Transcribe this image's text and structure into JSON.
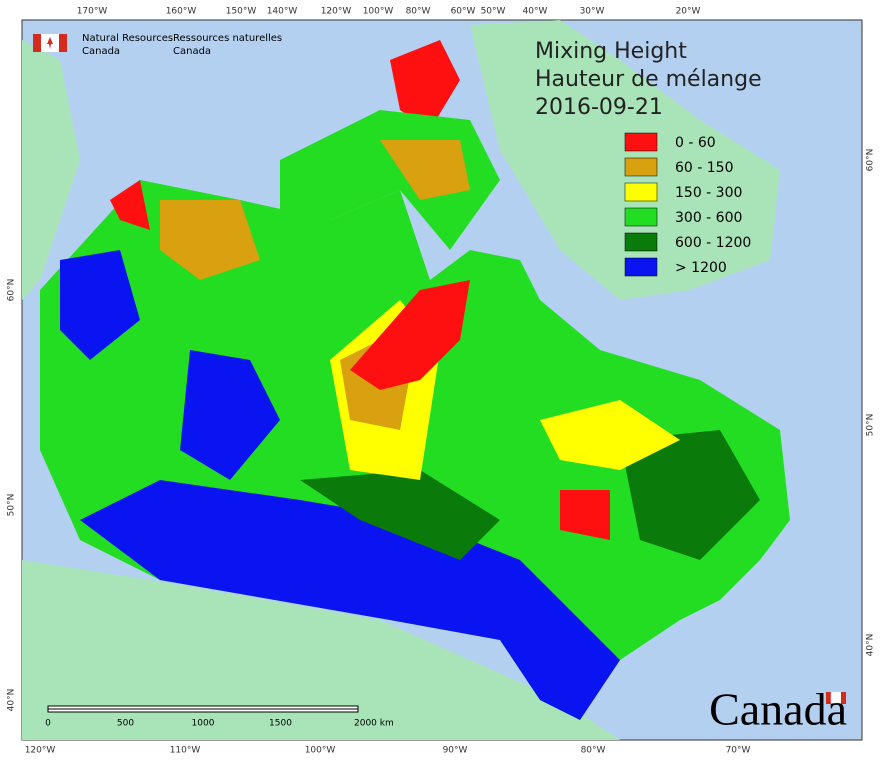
{
  "agency": {
    "en_line1": "Natural Resources",
    "en_line2": "Canada",
    "fr_line1": "Ressources naturelles",
    "fr_line2": "Canada"
  },
  "title": {
    "line1": "Mixing Height",
    "line2": "Hauteur de mélange",
    "date": "2016-09-21"
  },
  "legend": [
    {
      "label": "0 - 60",
      "color": "#ff1010"
    },
    {
      "label": "60 - 150",
      "color": "#d9a010"
    },
    {
      "label": "150 - 300",
      "color": "#ffff00"
    },
    {
      "label": "300 - 600",
      "color": "#22dd22"
    },
    {
      "label": "600 - 1200",
      "color": "#0a7a0a"
    },
    {
      "label": "> 1200",
      "color": "#0a14f0"
    }
  ],
  "graticule": {
    "top": [
      "170°W",
      "160°W",
      "150°W",
      "140°W",
      "120°W",
      "100°W",
      "80°W",
      "60°W",
      "50°W",
      "40°W",
      "30°W",
      "20°W"
    ],
    "bottom": [
      "120°W",
      "110°W",
      "100°W",
      "90°W",
      "80°W",
      "70°W"
    ],
    "left": [
      "60°N",
      "50°N",
      "40°N"
    ],
    "right": [
      "60°N",
      "50°N",
      "40°N"
    ]
  },
  "scale_bar": {
    "labels": [
      "0",
      "500",
      "1000",
      "1500",
      "2000 km"
    ]
  },
  "wordmark": "Canada"
}
